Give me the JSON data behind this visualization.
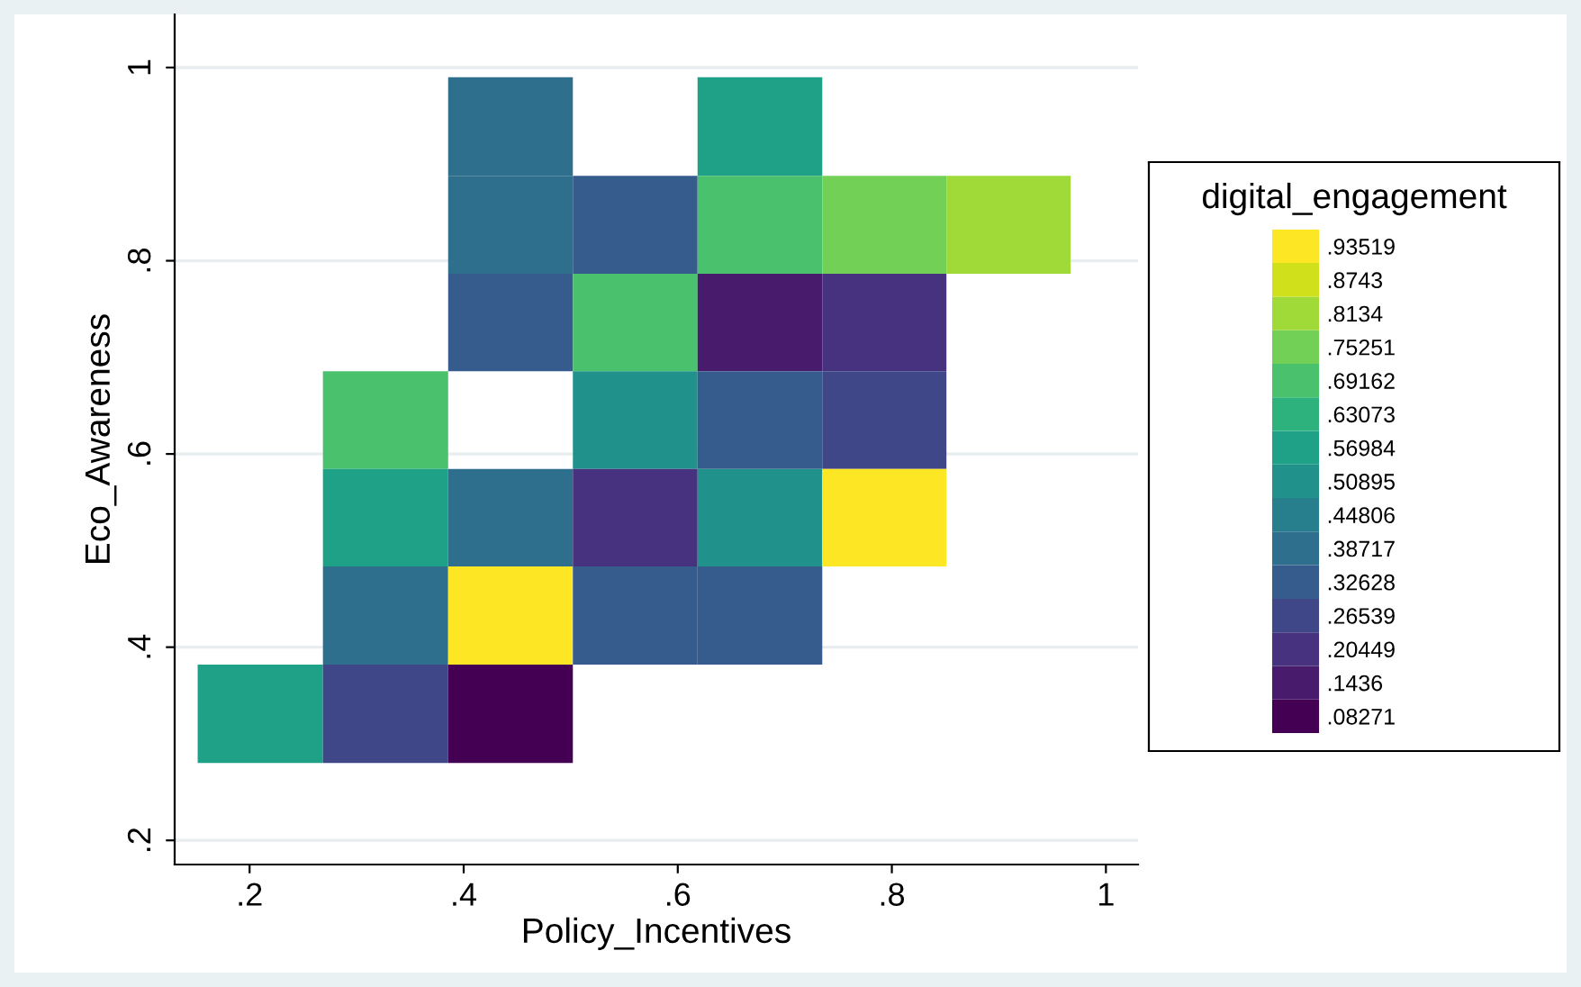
{
  "chart_data": {
    "type": "heatmap",
    "xlabel": "Policy_Incentives",
    "ylabel": "Eco_Awareness",
    "clabel": "digital_engagement",
    "x": [
      0.21,
      0.327,
      0.444,
      0.56,
      0.677,
      0.793,
      0.909
    ],
    "y": [
      0.939,
      0.837,
      0.736,
      0.635,
      0.534,
      0.433,
      0.331
    ],
    "cells": [
      [
        null,
        null,
        0.38717,
        null,
        0.56984,
        null,
        null
      ],
      [
        null,
        null,
        0.38717,
        0.32628,
        0.69162,
        0.75251,
        0.8134
      ],
      [
        null,
        null,
        0.32628,
        0.69162,
        0.1436,
        0.20449,
        null
      ],
      [
        null,
        0.69162,
        null,
        0.50895,
        0.32628,
        0.26539,
        null
      ],
      [
        null,
        0.56984,
        0.38717,
        0.20449,
        0.50895,
        0.93519,
        null
      ],
      [
        null,
        0.38717,
        0.93519,
        0.32628,
        0.32628,
        null,
        null
      ],
      [
        0.56984,
        0.26539,
        0.08271,
        null,
        null,
        null,
        null
      ]
    ],
    "cticks": [
      {
        "value": 0.93519,
        "label": ".93519"
      },
      {
        "value": 0.8743,
        "label": ".8743"
      },
      {
        "value": 0.8134,
        "label": ".8134"
      },
      {
        "value": 0.75251,
        "label": ".75251"
      },
      {
        "value": 0.69162,
        "label": ".69162"
      },
      {
        "value": 0.63073,
        "label": ".63073"
      },
      {
        "value": 0.56984,
        "label": ".56984"
      },
      {
        "value": 0.50895,
        "label": ".50895"
      },
      {
        "value": 0.44806,
        "label": ".44806"
      },
      {
        "value": 0.38717,
        "label": ".38717"
      },
      {
        "value": 0.32628,
        "label": ".32628"
      },
      {
        "value": 0.26539,
        "label": ".26539"
      },
      {
        "value": 0.20449,
        "label": ".20449"
      },
      {
        "value": 0.1436,
        "label": ".1436"
      },
      {
        "value": 0.08271,
        "label": ".08271"
      }
    ],
    "colors": [
      "#fde725",
      "#d0e11c",
      "#a0da39",
      "#73d056",
      "#4ac16d",
      "#2db27d",
      "#1fa187",
      "#21918c",
      "#277f8e",
      "#2e6f8e",
      "#365c8d",
      "#3f4788",
      "#46327e",
      "#481b6d",
      "#440154"
    ],
    "xlim": [
      0.13,
      1.03
    ],
    "ylim": [
      0.175,
      1.055
    ],
    "xticks": [
      {
        "value": 0.2,
        "label": ".2"
      },
      {
        "value": 0.4,
        "label": ".4"
      },
      {
        "value": 0.6,
        "label": ".6"
      },
      {
        "value": 0.8,
        "label": ".8"
      },
      1
    ],
    "yticks": [
      {
        "value": 0.2,
        "label": ".2"
      },
      {
        "value": 0.4,
        "label": ".4"
      },
      {
        "value": 0.6,
        "label": ".6"
      },
      {
        "value": 0.8,
        "label": ".8"
      },
      1
    ],
    "grid": "y"
  }
}
